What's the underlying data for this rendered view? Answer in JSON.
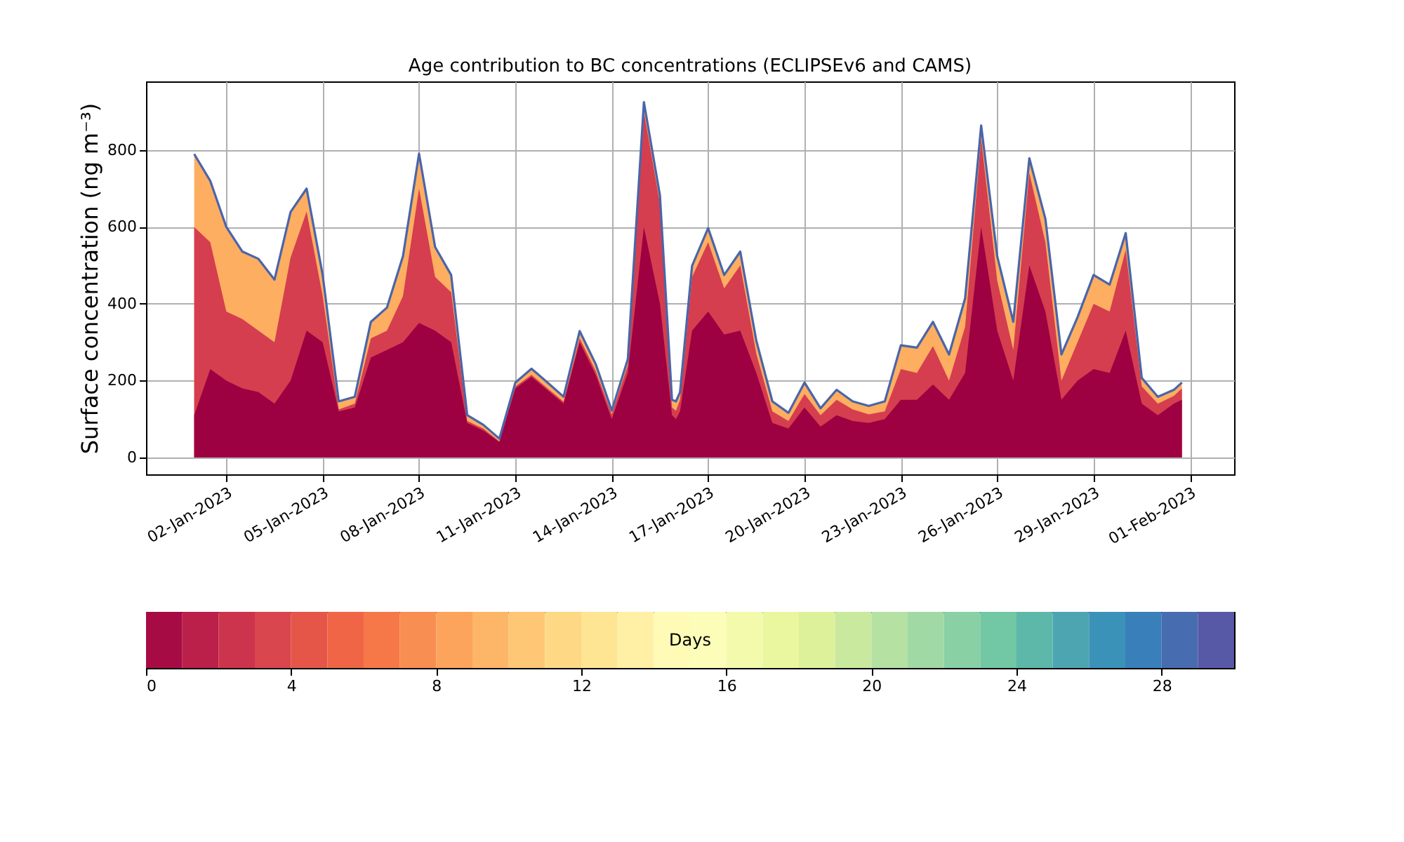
{
  "chart_data": {
    "type": "area",
    "title": "Age contribution to BC concentrations (ECLIPSEv6 and CAMS)",
    "ylabel": "Surface concentration (ng m⁻³)",
    "x": [
      "2023-01-01T00:00",
      "2023-01-01T12:00",
      "2023-01-02T00:00",
      "2023-01-02T12:00",
      "2023-01-03T00:00",
      "2023-01-03T12:00",
      "2023-01-04T00:00",
      "2023-01-04T12:00",
      "2023-01-05T00:00",
      "2023-01-05T12:00",
      "2023-01-06T00:00",
      "2023-01-06T12:00",
      "2023-01-07T00:00",
      "2023-01-07T12:00",
      "2023-01-08T00:00",
      "2023-01-08T12:00",
      "2023-01-09T00:00",
      "2023-01-09T12:00",
      "2023-01-10T00:00",
      "2023-01-10T12:00",
      "2023-01-11T00:00",
      "2023-01-11T12:00",
      "2023-01-12T00:00",
      "2023-01-12T12:00",
      "2023-01-13T00:00",
      "2023-01-13T12:00",
      "2023-01-14T00:00",
      "2023-01-14T12:00",
      "2023-01-15T00:00",
      "2023-01-15T12:00",
      "2023-01-15T21:00",
      "2023-01-16T00:00",
      "2023-01-16T03:00",
      "2023-01-16T12:00",
      "2023-01-17T00:00",
      "2023-01-17T12:00",
      "2023-01-18T00:00",
      "2023-01-18T12:00",
      "2023-01-19T00:00",
      "2023-01-19T12:00",
      "2023-01-20T00:00",
      "2023-01-20T12:00",
      "2023-01-21T00:00",
      "2023-01-21T12:00",
      "2023-01-22T00:00",
      "2023-01-22T12:00",
      "2023-01-23T00:00",
      "2023-01-23T12:00",
      "2023-01-24T00:00",
      "2023-01-24T12:00",
      "2023-01-25T00:00",
      "2023-01-25T12:00",
      "2023-01-26T00:00",
      "2023-01-26T12:00",
      "2023-01-27T00:00",
      "2023-01-27T12:00",
      "2023-01-28T00:00",
      "2023-01-28T12:00",
      "2023-01-29T00:00",
      "2023-01-29T12:00",
      "2023-01-30T00:00",
      "2023-01-30T12:00",
      "2023-01-31T00:00",
      "2023-01-31T12:00",
      "2023-01-31T18:00"
    ],
    "series": [
      {
        "color": "#fdae61",
        "values": [
          790,
          720,
          600,
          536,
          517,
          463,
          639,
          700,
          475,
          146,
          158,
          353,
          390,
          524,
          791,
          548,
          475,
          110,
          85,
          49,
          195,
          231,
          195,
          158,
          329,
          243,
          122,
          256,
          925,
          682,
          150,
          146,
          170,
          499,
          597,
          475,
          536,
          304,
          146,
          116,
          195,
          128,
          176,
          146,
          134,
          146,
          292,
          286,
          353,
          268,
          414,
          864,
          524,
          353,
          779,
          621,
          268,
          365,
          475,
          450,
          584,
          207,
          158,
          176,
          195
        ]
      },
      {
        "color": "#d53e4f",
        "values": [
          600,
          560,
          380,
          360,
          330,
          300,
          520,
          640,
          420,
          125,
          140,
          310,
          330,
          420,
          700,
          470,
          430,
          95,
          75,
          42,
          185,
          215,
          180,
          145,
          310,
          225,
          112,
          240,
          900,
          660,
          130,
          122,
          150,
          470,
          560,
          440,
          500,
          270,
          120,
          95,
          165,
          110,
          150,
          125,
          112,
          120,
          230,
          220,
          290,
          200,
          340,
          830,
          460,
          280,
          740,
          560,
          200,
          300,
          400,
          380,
          540,
          185,
          140,
          160,
          180
        ]
      },
      {
        "color": "#9e0142",
        "values": [
          110,
          230,
          200,
          180,
          170,
          140,
          200,
          330,
          300,
          120,
          130,
          260,
          280,
          300,
          350,
          330,
          300,
          90,
          70,
          40,
          180,
          210,
          175,
          140,
          300,
          215,
          100,
          220,
          600,
          400,
          110,
          100,
          120,
          330,
          380,
          320,
          330,
          220,
          90,
          75,
          130,
          80,
          110,
          95,
          90,
          100,
          150,
          150,
          190,
          150,
          220,
          600,
          330,
          200,
          500,
          380,
          150,
          200,
          230,
          220,
          330,
          140,
          110,
          140,
          150
        ]
      },
      {
        "type": "line",
        "color": "#4a65a9",
        "values": [
          790,
          720,
          600,
          536,
          517,
          463,
          639,
          700,
          475,
          146,
          158,
          353,
          390,
          524,
          791,
          548,
          475,
          110,
          85,
          49,
          195,
          231,
          195,
          158,
          329,
          243,
          122,
          256,
          925,
          682,
          150,
          146,
          170,
          499,
          597,
          475,
          536,
          304,
          146,
          116,
          195,
          128,
          176,
          146,
          134,
          146,
          292,
          286,
          353,
          268,
          414,
          864,
          524,
          353,
          779,
          621,
          268,
          365,
          475,
          450,
          584,
          207,
          158,
          176,
          195
        ]
      }
    ],
    "xlim": [
      "2022-12-30T12:00",
      "2023-02-02T09:00"
    ],
    "xticks": [
      {
        "value": "2023-01-02",
        "label": "02-Jan-2023"
      },
      {
        "value": "2023-01-05",
        "label": "05-Jan-2023"
      },
      {
        "value": "2023-01-08",
        "label": "08-Jan-2023"
      },
      {
        "value": "2023-01-11",
        "label": "11-Jan-2023"
      },
      {
        "value": "2023-01-14",
        "label": "14-Jan-2023"
      },
      {
        "value": "2023-01-17",
        "label": "17-Jan-2023"
      },
      {
        "value": "2023-01-20",
        "label": "20-Jan-2023"
      },
      {
        "value": "2023-01-23",
        "label": "23-Jan-2023"
      },
      {
        "value": "2023-01-26",
        "label": "26-Jan-2023"
      },
      {
        "value": "2023-01-29",
        "label": "29-Jan-2023"
      },
      {
        "value": "2023-02-01",
        "label": "01-Feb-2023"
      }
    ],
    "ylim": [
      -44,
      979
    ],
    "yticks": [
      0,
      200,
      400,
      600,
      800
    ],
    "grid": true,
    "clabel": "Days",
    "clim": [
      0,
      30
    ],
    "cticks": [
      0,
      4,
      8,
      12,
      16,
      20,
      24,
      28
    ],
    "colors": [
      "#a70b44",
      "#ba2049",
      "#cc344d",
      "#da464d",
      "#e55649",
      "#ef6545",
      "#f67848",
      "#f98e52",
      "#fca35c",
      "#fdb668",
      "#fec776",
      "#fed884",
      "#fee594",
      "#fff0a5",
      "#fffab6",
      "#fbfdb9",
      "#f3faac",
      "#eaf79f",
      "#dcf19a",
      "#c9e99e",
      "#b5e1a2",
      "#a0d9a4",
      "#89d0a5",
      "#72c7a5",
      "#5db8a9",
      "#4ca5b1",
      "#3b92b9",
      "#397fb9",
      "#486cb0",
      "#5759a6"
    ]
  }
}
